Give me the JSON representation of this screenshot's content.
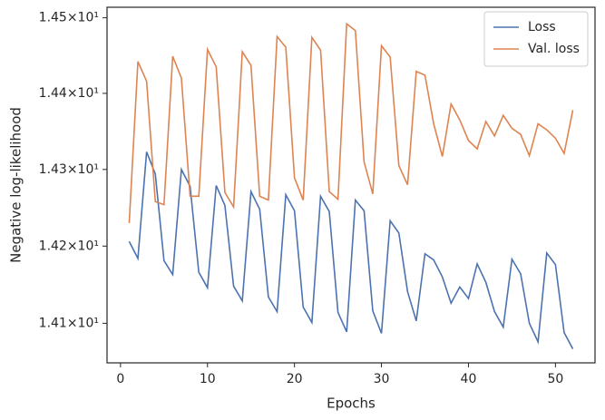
{
  "chart_data": {
    "type": "line",
    "xlabel": "Epochs",
    "ylabel": "Negative log-likelihood",
    "x": [
      1,
      2,
      3,
      4,
      5,
      6,
      7,
      8,
      9,
      10,
      11,
      12,
      13,
      14,
      15,
      16,
      17,
      18,
      19,
      20,
      21,
      22,
      23,
      24,
      25,
      26,
      27,
      28,
      29,
      30,
      31,
      32,
      33,
      34,
      35,
      36,
      37,
      38,
      39,
      40,
      41,
      42,
      43,
      44,
      45,
      46,
      47,
      48,
      49,
      50,
      51,
      52
    ],
    "series": [
      {
        "name": "Loss",
        "color": "#4c72b0",
        "values": [
          14.206,
          14.184,
          14.323,
          14.294,
          14.181,
          14.163,
          14.3,
          14.278,
          14.166,
          14.146,
          14.279,
          14.253,
          14.148,
          14.129,
          14.271,
          14.248,
          14.134,
          14.115,
          14.267,
          14.246,
          14.121,
          14.101,
          14.265,
          14.245,
          14.114,
          14.089,
          14.26,
          14.246,
          14.116,
          14.087,
          14.233,
          14.217,
          14.141,
          14.103,
          14.19,
          14.182,
          14.16,
          14.126,
          14.147,
          14.132,
          14.177,
          14.153,
          14.115,
          14.095,
          14.183,
          14.164,
          14.1,
          14.076,
          14.191,
          14.176,
          14.088,
          14.067
        ]
      },
      {
        "name": "Val. loss",
        "color": "#dd8452",
        "values": [
          14.23,
          14.442,
          14.416,
          14.258,
          14.254,
          14.449,
          14.42,
          14.265,
          14.265,
          14.458,
          14.435,
          14.27,
          14.251,
          14.455,
          14.437,
          14.265,
          14.26,
          14.475,
          14.461,
          14.289,
          14.26,
          14.474,
          14.457,
          14.271,
          14.261,
          14.492,
          14.483,
          14.31,
          14.268,
          14.463,
          14.448,
          14.305,
          14.28,
          14.429,
          14.424,
          14.36,
          14.317,
          14.386,
          14.365,
          14.338,
          14.327,
          14.363,
          14.344,
          14.371,
          14.354,
          14.346,
          14.318,
          14.36,
          14.352,
          14.341,
          14.321,
          14.378
        ]
      }
    ],
    "xlim": [
      -1.55,
      54.55
    ],
    "xticks": [
      0,
      10,
      20,
      30,
      40,
      50
    ],
    "ylim": [
      14.049,
      14.514
    ],
    "yscale": "log",
    "yticks": [
      {
        "value": 14.1,
        "label": "1.41×10¹"
      },
      {
        "value": 14.2,
        "label": "1.42×10¹"
      },
      {
        "value": 14.3,
        "label": "1.43×10¹"
      },
      {
        "value": 14.4,
        "label": "1.44×10¹"
      },
      {
        "value": 14.5,
        "label": "1.45×10¹"
      }
    ],
    "legend": "upper right"
  }
}
